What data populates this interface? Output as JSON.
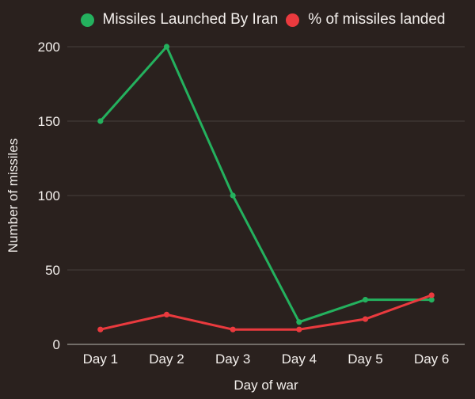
{
  "page": {
    "colors": {
      "background": "#2a211e",
      "text": "#f3efec",
      "grid": "#423b37",
      "axis": "#7d7873"
    }
  },
  "chart_data": {
    "type": "line",
    "categories": [
      "Day 1",
      "Day 2",
      "Day 3",
      "Day 4",
      "Day 5",
      "Day 6"
    ],
    "series": [
      {
        "name": "Missiles Launched By Iran",
        "color": "#24b15e",
        "values": [
          150,
          200,
          100,
          15,
          30,
          30
        ]
      },
      {
        "name": "% of missiles landed",
        "color": "#ea3a3e",
        "values": [
          10,
          20,
          10,
          10,
          17,
          33
        ]
      }
    ],
    "xlabel": "Day of war",
    "ylabel": "Number of missiles",
    "ylim": [
      0,
      200
    ],
    "yticks": [
      0,
      50,
      100,
      150,
      200
    ],
    "grid": true,
    "legend_position": "top",
    "marker": "circle"
  }
}
